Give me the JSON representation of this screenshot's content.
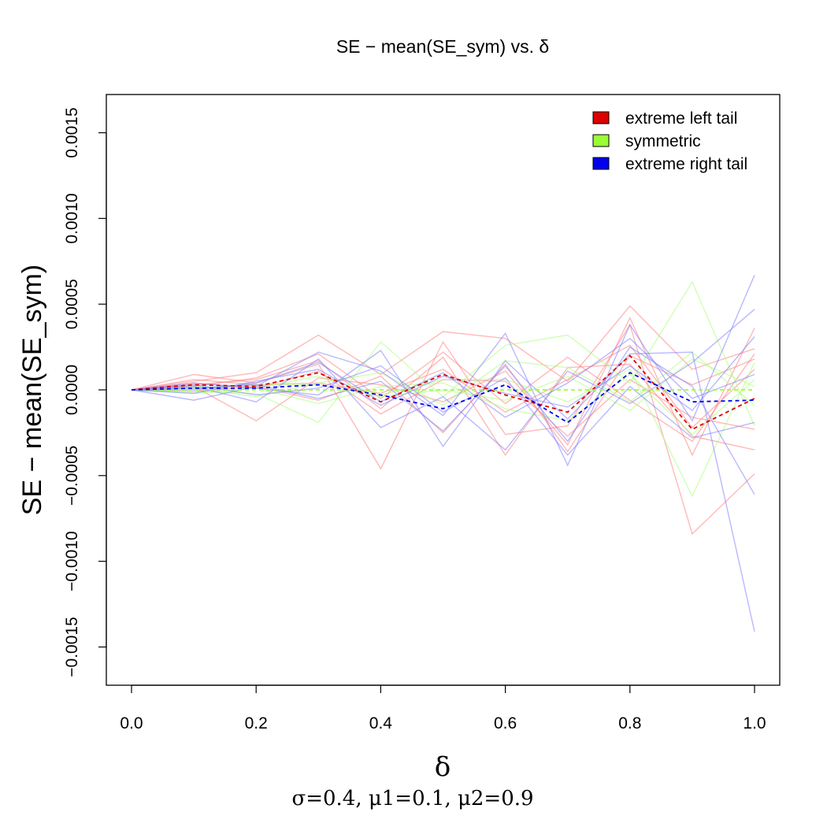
{
  "chart_data": {
    "type": "line",
    "title": "SE − mean(SE_sym) vs. δ",
    "xlabel": "δ",
    "subtitle": "σ=0.4, μ1=0.1, μ2=0.9",
    "ylabel": "SE − mean(SE_sym)",
    "xlim": [
      0,
      1
    ],
    "ylim": [
      -0.0017,
      0.0017
    ],
    "x": [
      0.0,
      0.1,
      0.2,
      0.3,
      0.4,
      0.5,
      0.6,
      0.7,
      0.8,
      0.9,
      1.0
    ],
    "x_ticks": [
      "0.0",
      "0.2",
      "0.4",
      "0.6",
      "0.8",
      "1.0"
    ],
    "x_tick_values": [
      0,
      0.2,
      0.4,
      0.6,
      0.8,
      1.0
    ],
    "y_ticks": [
      "−0.0015",
      "−0.0010",
      "−0.0005",
      "0.0000",
      "0.0005",
      "0.0010",
      "0.0015"
    ],
    "y_tick_values": [
      -0.0015,
      -0.001,
      -0.0005,
      0,
      0.0005,
      0.001,
      0.0015
    ],
    "grid": false,
    "legend_position": "top-right",
    "legend": [
      {
        "label": "extreme left tail",
        "color": "#dd0000"
      },
      {
        "label": "symmetric",
        "color": "#99ff33"
      },
      {
        "label": "extreme right tail",
        "color": "#0000ee"
      }
    ],
    "series": [
      {
        "group": "left",
        "style": "mean-dashed",
        "values": [
          0,
          3e-05,
          2e-05,
          0.0001,
          -7e-05,
          9e-05,
          -3e-05,
          -0.00013,
          0.0002,
          -0.00023,
          -5e-05
        ]
      },
      {
        "group": "symmetric",
        "style": "mean-dashed",
        "values": [
          0,
          0,
          0,
          0,
          0,
          0,
          0,
          0,
          0,
          0,
          0
        ]
      },
      {
        "group": "right",
        "style": "mean-dashed",
        "values": [
          0,
          1e-05,
          1e-05,
          3e-05,
          -3e-05,
          -0.00011,
          3e-05,
          -0.00019,
          0.0001,
          -7e-05,
          -6e-05
        ]
      },
      {
        "group": "left",
        "style": "run",
        "values": [
          0,
          5e-05,
          0.0001,
          0.00032,
          9e-05,
          0.00034,
          0.0003,
          5e-05,
          0.00049,
          0.00012,
          0.00024
        ]
      },
      {
        "group": "left",
        "style": "run",
        "values": [
          0,
          9e-05,
          4e-05,
          0.00015,
          -0.00046,
          0.00028,
          -0.00026,
          -0.00021,
          0.00038,
          -0.00084,
          -0.00049
        ]
      },
      {
        "group": "left",
        "style": "run",
        "values": [
          0,
          2e-05,
          -0.00018,
          7e-05,
          3e-05,
          -7e-05,
          0.00011,
          -0.00032,
          0.00042,
          -0.00038,
          0.00036
        ]
      },
      {
        "group": "left",
        "style": "run",
        "values": [
          0,
          3e-05,
          6e-05,
          0.00017,
          -0.00011,
          0.00019,
          -0.00038,
          0.00013,
          0.00015,
          -0.00027,
          -0.00035
        ]
      },
      {
        "group": "left",
        "style": "run",
        "values": [
          0,
          -1e-05,
          2e-05,
          -6e-05,
          8e-05,
          -0.00025,
          0.00015,
          -0.00036,
          0.0002,
          3e-05,
          0.00018
        ]
      },
      {
        "group": "left",
        "style": "run",
        "values": [
          0,
          6e-05,
          3e-05,
          4e-05,
          -2e-05,
          0.00012,
          -0.00013,
          6e-05,
          0.00026,
          -0.00022,
          0.00012
        ]
      },
      {
        "group": "left",
        "style": "run",
        "values": [
          0,
          4e-05,
          1e-05,
          0.00011,
          -0.00014,
          6e-05,
          5e-05,
          -0.00027,
          6e-05,
          -0.00016,
          -0.00023
        ]
      },
      {
        "group": "left",
        "style": "run",
        "values": [
          0,
          2e-05,
          7e-05,
          0.00021,
          -5e-05,
          0.00022,
          -8e-05,
          0.00019,
          -6e-05,
          -0.0003,
          0.00021
        ]
      },
      {
        "group": "symmetric",
        "style": "run",
        "values": [
          0,
          -1e-05,
          -2e-05,
          -0.00019,
          0.00028,
          -4e-05,
          0.00026,
          0.00032,
          4e-05,
          0.00063,
          -0.00021
        ]
      },
      {
        "group": "symmetric",
        "style": "run",
        "values": [
          0,
          2e-05,
          1e-05,
          8e-05,
          -3e-05,
          6e-05,
          6e-05,
          -7e-05,
          0.00012,
          -0.00062,
          0.00016
        ]
      },
      {
        "group": "symmetric",
        "style": "run",
        "values": [
          0,
          1e-05,
          -4e-05,
          4e-05,
          0.0001,
          -9e-05,
          0.00017,
          0.00013,
          -7e-05,
          0.00022,
          -9e-05
        ]
      },
      {
        "group": "symmetric",
        "style": "run",
        "values": [
          0,
          -2e-05,
          1e-05,
          -8e-05,
          2e-05,
          4e-05,
          -0.00011,
          -0.00018,
          9e-05,
          -0.00026,
          6e-05
        ]
      },
      {
        "group": "symmetric",
        "style": "run",
        "values": [
          0,
          1e-05,
          3e-05,
          3e-05,
          -4e-05,
          0.0,
          -6e-05,
          8e-05,
          -0.00012,
          0.00018,
          2e-05
        ]
      },
      {
        "group": "right",
        "style": "run",
        "values": [
          0,
          -6e-05,
          2e-05,
          0.00022,
          0.00011,
          -0.00015,
          0.00033,
          -0.00044,
          0.00038,
          -0.00018,
          0.00067
        ]
      },
      {
        "group": "right",
        "style": "run",
        "values": [
          0,
          4e-05,
          1e-05,
          -3e-05,
          0.00023,
          -0.00033,
          0.00017,
          -0.00017,
          0.00021,
          0.00022,
          -0.00141
        ]
      },
      {
        "group": "right",
        "style": "run",
        "values": [
          0,
          2e-05,
          -7e-05,
          0.00018,
          -0.00022,
          -4e-05,
          -0.00035,
          0.00011,
          -8e-05,
          0.00016,
          0.00047
        ]
      },
      {
        "group": "right",
        "style": "run",
        "values": [
          0,
          1e-05,
          3e-05,
          -5e-05,
          5e-05,
          -0.00024,
          0.00014,
          -0.0003,
          0.00025,
          2e-05,
          -0.00061
        ]
      },
      {
        "group": "right",
        "style": "run",
        "values": [
          0,
          -2e-05,
          5e-05,
          0.00012,
          -9e-05,
          8e-05,
          -2e-05,
          -0.0001,
          0.00014,
          -0.00012,
          0.00031
        ]
      },
      {
        "group": "right",
        "style": "run",
        "values": [
          0,
          3e-05,
          -3e-05,
          1e-05,
          0.00014,
          -0.00013,
          7e-05,
          -0.00038,
          2e-05,
          -0.00028,
          -0.00019
        ]
      },
      {
        "group": "right",
        "style": "run",
        "values": [
          0,
          0.0,
          4e-05,
          0.00016,
          -7e-05,
          0.0001,
          -0.00016,
          4e-05,
          0.0003,
          -5e-05,
          9e-05
        ]
      }
    ]
  }
}
